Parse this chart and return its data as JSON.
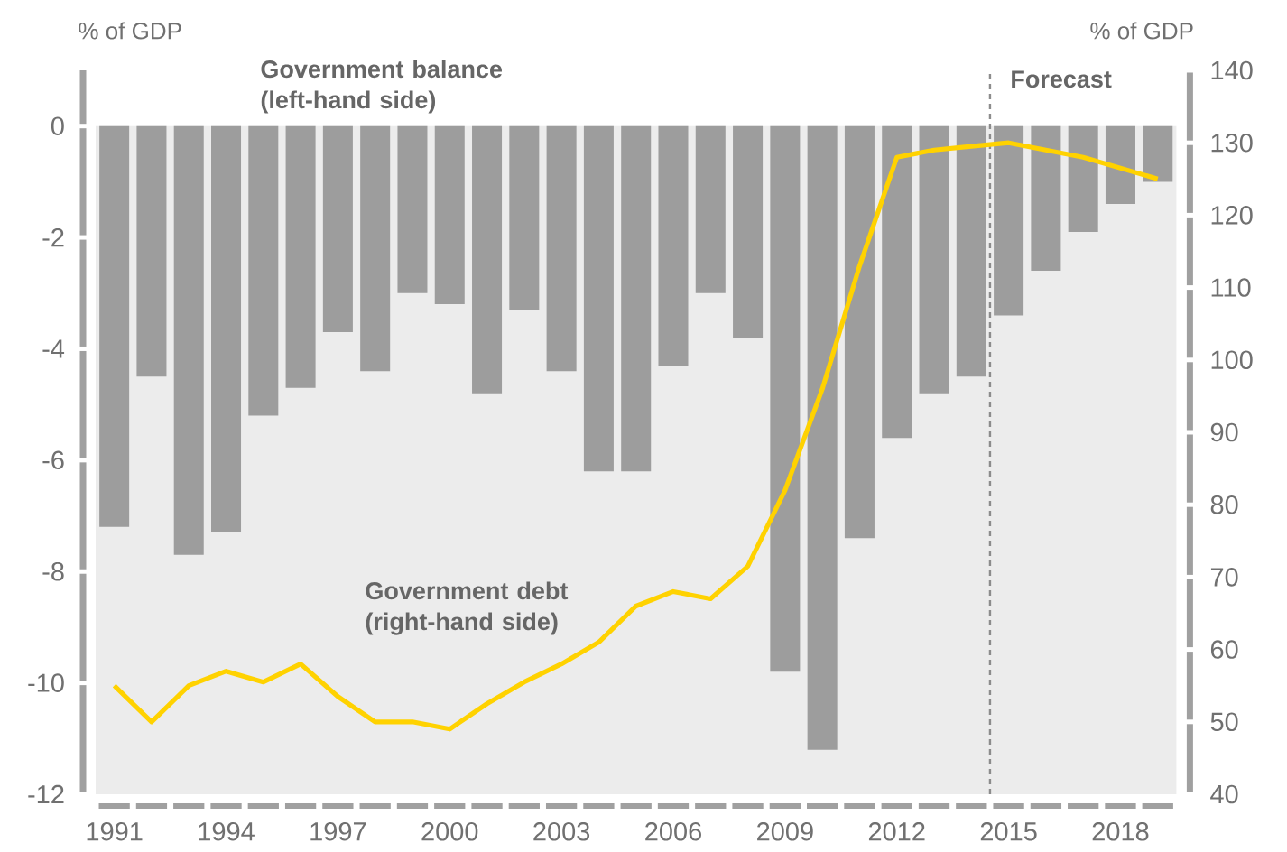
{
  "chart_data": {
    "type": "bar",
    "x": [
      1991,
      1992,
      1993,
      1994,
      1995,
      1996,
      1997,
      1998,
      1999,
      2000,
      2001,
      2002,
      2003,
      2004,
      2005,
      2006,
      2007,
      2008,
      2009,
      2010,
      2011,
      2012,
      2013,
      2014,
      2015,
      2016,
      2017,
      2018,
      2019
    ],
    "xlim": [
      1990.5,
      2019.5
    ],
    "xticks": [
      1991,
      1994,
      1997,
      2000,
      2003,
      2006,
      2009,
      2012,
      2015,
      2018
    ],
    "ylim": [
      -12,
      1
    ],
    "yticks": [
      -12,
      -10,
      -8,
      -6,
      -4,
      -2,
      0
    ],
    "y2lim": [
      40,
      140
    ],
    "y2ticks": [
      40,
      50,
      60,
      70,
      80,
      90,
      100,
      110,
      120,
      130,
      140
    ],
    "ylabel": "% of GDP",
    "y2label": "% of GDP",
    "series": [
      {
        "name": "Government balance (left-hand side)",
        "color": "#9d9d9d",
        "values": [
          -7.2,
          -4.5,
          -7.7,
          -7.3,
          -5.2,
          -4.7,
          -3.7,
          -4.4,
          -3.0,
          -3.2,
          -4.8,
          -3.3,
          -4.4,
          -6.2,
          -6.2,
          -4.3,
          -3.0,
          -3.8,
          -9.8,
          -11.2,
          -7.4,
          -5.6,
          -4.8,
          -4.5,
          -3.4,
          -2.6,
          -1.9,
          -1.4,
          -1.0
        ]
      },
      {
        "name": "Government debt (right-hand side)",
        "type": "line",
        "axis": "y2",
        "color": "#ffd200",
        "values": [
          55,
          50,
          55,
          57,
          55.5,
          58,
          53.5,
          50,
          50,
          49,
          52.5,
          55.5,
          58,
          61,
          66,
          68,
          67,
          71.5,
          82,
          96,
          113,
          128,
          129,
          129.5,
          130,
          129,
          128,
          126.5,
          125
        ]
      }
    ],
    "ref_lines": [
      {
        "axis": "x",
        "value": 2014.5,
        "label": "Forecast",
        "color": "#8c8c8c",
        "line_style": "dashed"
      }
    ]
  }
}
